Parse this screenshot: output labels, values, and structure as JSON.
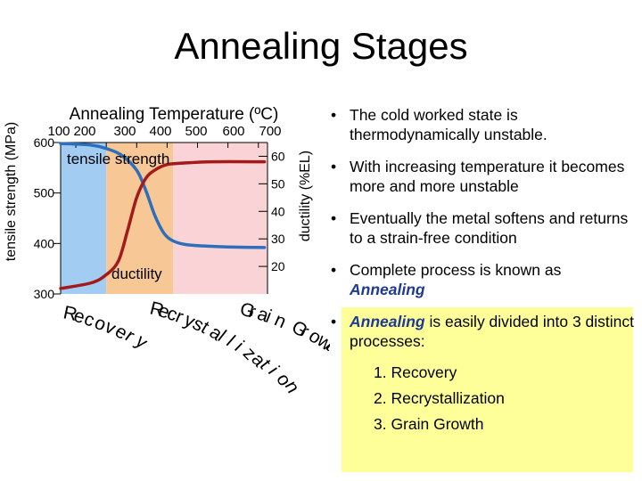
{
  "title": "Annealing Stages",
  "chart_data": {
    "type": "line",
    "top_axis_label": "Annealing Temperature (ºC)",
    "top_ticks": [
      {
        "label": "100",
        "x": 100
      },
      {
        "label": "200",
        "x": 200
      },
      {
        "label": "300",
        "x": 300
      },
      {
        "label": "400",
        "x": 400
      },
      {
        "label": "500",
        "x": 500
      },
      {
        "label": "600",
        "x": 600
      },
      {
        "label": "700",
        "x": 700
      }
    ],
    "xlim": [
      50,
      730
    ],
    "left_axis": {
      "label": "tensile strength (MPa)",
      "ticks": [
        "300",
        "400",
        "500",
        "600"
      ],
      "ylim": [
        300,
        600
      ]
    },
    "right_axis": {
      "label": "ductility (%EL)",
      "ticks": [
        "20",
        "30",
        "40",
        "50",
        "60"
      ],
      "ylim": [
        10,
        65
      ]
    },
    "regions": [
      {
        "name": "Recovery",
        "x_range": [
          50,
          200
        ],
        "color": "#a3ccf3"
      },
      {
        "name": "Recrystallization",
        "x_range": [
          200,
          420
        ],
        "color": "#f8c796"
      },
      {
        "name": "Grain Growth",
        "x_range": [
          420,
          730
        ],
        "color": "#f9d3d6"
      }
    ],
    "series": [
      {
        "name": "tensile strength",
        "color": "#2d6ebd",
        "x": [
          50,
          150,
          200,
          250,
          300,
          330,
          360,
          390,
          420,
          460,
          520,
          600,
          720
        ],
        "y": [
          598,
          595,
          588,
          575,
          545,
          505,
          455,
          420,
          405,
          398,
          395,
          393,
          392
        ]
      },
      {
        "name": "ductility",
        "color": "#a31a1a",
        "x": [
          50,
          150,
          200,
          240,
          270,
          300,
          330,
          360,
          400,
          450,
          550,
          720
        ],
        "y": [
          12,
          14,
          17,
          22,
          33,
          45,
          52,
          55,
          57,
          57.5,
          58,
          58
        ]
      }
    ],
    "region_labels": [
      "Recovery",
      "Recrystallization",
      "Grain Growth"
    ]
  },
  "bullets": [
    {
      "text": "The cold worked state is thermodynamically unstable."
    },
    {
      "text": "With increasing temperature it becomes more and more unstable"
    },
    {
      "text": "Eventually the metal softens and returns to a strain-free condition"
    },
    {
      "pre": "Complete process is known as ",
      "em": "Annealing",
      "post": ""
    },
    {
      "pre": "",
      "em": "Annealing",
      "post": " is easily divided into 3 distinct processes:"
    }
  ],
  "steps": [
    "1.  Recovery",
    "2.  Recrystallization",
    "3.  Grain Growth"
  ],
  "bullet_symbol": "•"
}
